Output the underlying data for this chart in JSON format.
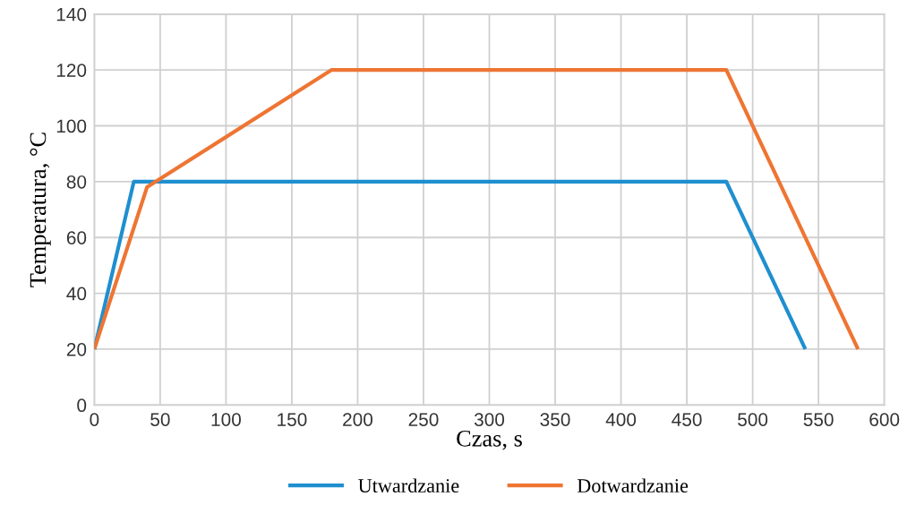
{
  "chart_data": {
    "type": "line",
    "xlabel": "Czas, s",
    "ylabel": "Temperatura, °C",
    "series": [
      {
        "name": "Utwardzanie",
        "color": "#1f8fcf",
        "x": [
          0,
          30,
          480,
          540
        ],
        "values": [
          20,
          80,
          80,
          20
        ]
      },
      {
        "name": "Dotwardzanie",
        "color": "#ee7533",
        "x": [
          0,
          40,
          180,
          480,
          580
        ],
        "values": [
          20,
          78,
          120,
          120,
          20
        ]
      }
    ],
    "xlim": [
      0,
      600
    ],
    "xticks": [
      0,
      50,
      100,
      150,
      200,
      250,
      300,
      350,
      400,
      450,
      500,
      550,
      600
    ],
    "ylim": [
      0,
      140
    ],
    "yticks": [
      0,
      20,
      40,
      60,
      80,
      100,
      120,
      140
    ],
    "grid": true,
    "legend": "bottom",
    "marker": "none",
    "line_style": "solid"
  }
}
